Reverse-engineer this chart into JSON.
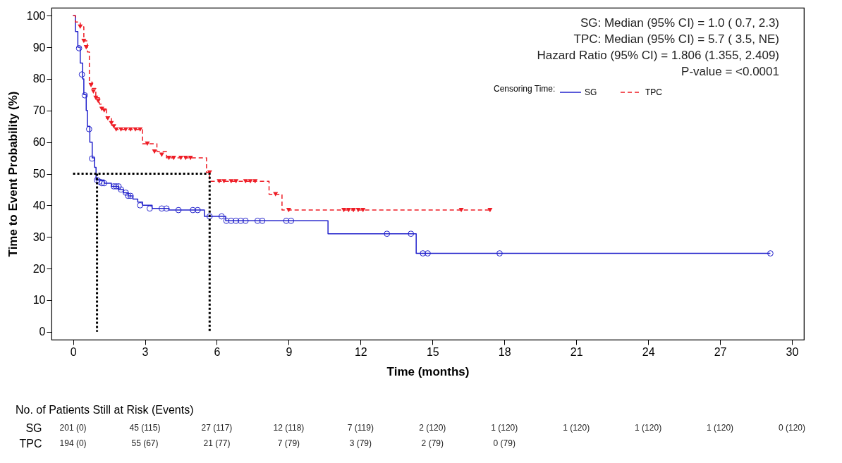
{
  "chart_data": {
    "type": "step",
    "xlabel": "Time (months)",
    "ylabel": "Time to Event Probability (%)",
    "legend_title": "Censoring Time:",
    "legend": "top right",
    "grid": false,
    "xlim": [
      -0.9,
      30.5
    ],
    "xticks": [
      0,
      3,
      6,
      9,
      12,
      15,
      18,
      21,
      24,
      27,
      30
    ],
    "ylim": [
      -2.5,
      102.5
    ],
    "yticks": [
      0,
      10,
      20,
      30,
      40,
      50,
      60,
      70,
      80,
      90,
      100
    ],
    "series": [
      {
        "name": "SG",
        "color": "#2323cc",
        "line_style": "solid",
        "x": [
          0,
          0.1,
          0.2,
          0.3,
          0.4,
          0.45,
          0.55,
          0.6,
          0.7,
          0.8,
          0.9,
          0.96,
          1.3,
          1.6,
          1.9,
          2.1,
          2.3,
          2.5,
          2.7,
          2.9,
          3.3,
          4.0,
          5.48,
          6.37,
          10.64,
          14.32,
          29.1
        ],
        "values": [
          100,
          95,
          90,
          85,
          80,
          75,
          70,
          65,
          60,
          55,
          52,
          48,
          47,
          46,
          45,
          44,
          43,
          42,
          41,
          40,
          39,
          38.5,
          36.5,
          35.1,
          31,
          24.8,
          24.8
        ]
      },
      {
        "name": "TPC",
        "color": "#ee1c25",
        "line_style": "dashed",
        "x": [
          0,
          0.1,
          0.3,
          0.45,
          0.6,
          0.68,
          0.8,
          0.95,
          1.1,
          1.2,
          1.4,
          1.6,
          1.8,
          2.9,
          3.5,
          3.9,
          5.57,
          5.7,
          8.18,
          8.72,
          17.4
        ],
        "values": [
          100,
          98,
          96.5,
          92,
          88.5,
          79,
          77,
          74,
          72,
          70.5,
          67.5,
          65.3,
          64,
          59.5,
          57,
          55,
          50.4,
          47.6,
          43.5,
          38.5,
          38.5
        ]
      },
      {
        "type": "scatter",
        "color": "#2323cc",
        "marker": "circle",
        "x": [
          0.25,
          0.37,
          0.49,
          0.67,
          0.79,
          1.0,
          1.1,
          1.2,
          1.3,
          1.7,
          1.8,
          1.9,
          2.0,
          2.2,
          2.3,
          2.4,
          2.8,
          3.2,
          3.7,
          3.9,
          4.4,
          5.0,
          5.2,
          5.7,
          6.2,
          6.4,
          6.6,
          6.8,
          7.0,
          7.2,
          7.7,
          7.9,
          8.9,
          9.1,
          13.1,
          14.1,
          14.6,
          14.8,
          17.8,
          29.1
        ],
        "values": [
          89.7,
          81.4,
          74.8,
          64.1,
          54.8,
          48,
          47.5,
          47,
          47,
          46,
          46,
          46,
          45,
          44,
          43,
          43,
          40,
          39,
          39,
          39,
          38.5,
          38.5,
          38.5,
          36.5,
          36.5,
          35.1,
          35.1,
          35.1,
          35.1,
          35.1,
          35.1,
          35.1,
          35.1,
          35.1,
          31,
          31,
          24.8,
          24.8,
          24.8,
          24.8
        ]
      },
      {
        "type": "scatter",
        "color": "#ee1c25",
        "marker": "triangle",
        "x": [
          0.3,
          0.45,
          0.55,
          0.75,
          0.85,
          0.95,
          1.05,
          1.2,
          1.3,
          1.45,
          1.6,
          1.7,
          1.8,
          2.0,
          2.2,
          2.4,
          2.6,
          2.8,
          3.1,
          3.4,
          3.7,
          4.0,
          4.2,
          4.5,
          4.7,
          4.9,
          5.7,
          6.1,
          6.3,
          6.6,
          6.8,
          7.2,
          7.4,
          7.6,
          8.45,
          9.0,
          11.3,
          11.5,
          11.7,
          11.9,
          12.1,
          16.2,
          17.4
        ],
        "values": [
          96.5,
          92,
          90,
          78,
          76,
          74,
          73,
          70.5,
          70,
          67.5,
          66,
          65,
          64,
          64,
          64,
          64,
          64,
          64,
          59.5,
          57,
          56,
          55,
          55,
          55,
          55,
          55,
          50.4,
          47.6,
          47.6,
          47.6,
          47.6,
          47.6,
          47.6,
          47.6,
          43.5,
          38.5,
          38.5,
          38.5,
          38.5,
          38.5,
          38.5,
          38.5,
          38.5
        ]
      },
      {
        "type": "line",
        "color": "#000000",
        "line_style": "dotted",
        "x": [
          0,
          5.7,
          5.7
        ],
        "values": [
          50,
          50,
          0
        ]
      },
      {
        "type": "line",
        "color": "#000000",
        "line_style": "dotted",
        "x": [
          1.0,
          1.0
        ],
        "values": [
          50,
          0
        ]
      }
    ],
    "annotations": [
      "SG: Median (95% CI) = 1.0 ( 0.7, 2.3)",
      "TPC: Median (95% CI) = 5.7 ( 3.5, NE)",
      "Hazard Ratio (95% CI) = 1.806 (1.355, 2.409)",
      "P-value = <0.0001",
      "No. of Patients Still at Risk (Events)",
      "SG",
      "201 (0)",
      "45 (115)",
      "27 (117)",
      "12 (118)",
      "7 (119)",
      "2 (120)",
      "1 (120)",
      "1 (120)",
      "1 (120)",
      "1 (120)",
      "0 (120)",
      "TPC",
      "194 (0)",
      "55 (67)",
      "21 (77)",
      "7 (79)",
      "3 (79)",
      "2 (79)",
      "0 (79)"
    ]
  }
}
